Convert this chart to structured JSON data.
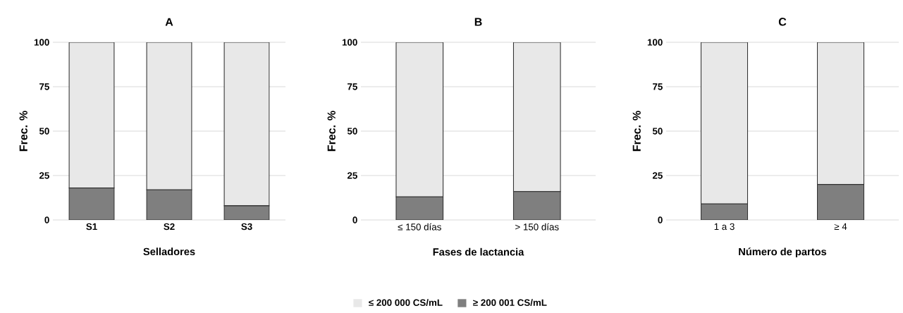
{
  "chart_data": [
    {
      "type": "bar",
      "title": "A",
      "xlabel": "Selladores",
      "ylabel": "Frec. %",
      "stacked": true,
      "grid": "y",
      "legend": "bottom",
      "categories": [
        "S1",
        "S2",
        "S3"
      ],
      "ylim": [
        0,
        100
      ],
      "yticks": [
        0,
        25,
        50,
        75,
        100
      ],
      "series": [
        {
          "name": "≥ 200 001 CS/mL",
          "color": "#7f7f7f",
          "values": [
            18,
            17,
            8
          ]
        },
        {
          "name": "≤ 200 000 CS/mL",
          "color": "#e8e8e8",
          "values": [
            82,
            83,
            92
          ]
        }
      ]
    },
    {
      "type": "bar",
      "title": "B",
      "xlabel": "Fases de lactancia",
      "ylabel": "Frec. %",
      "stacked": true,
      "grid": "y",
      "categories": [
        "≤ 150 días",
        "> 150 días"
      ],
      "ylim": [
        0,
        100
      ],
      "yticks": [
        0,
        25,
        50,
        75,
        100
      ],
      "series": [
        {
          "color": "#7f7f7f",
          "values": [
            13,
            16
          ]
        },
        {
          "color": "#e8e8e8",
          "values": [
            87,
            84
          ]
        }
      ]
    },
    {
      "type": "bar",
      "title": "C",
      "xlabel": "Número de partos",
      "ylabel": "Frec. %",
      "stacked": true,
      "grid": "y",
      "categories": [
        "1 a 3",
        "≥ 4"
      ],
      "ylim": [
        0,
        100
      ],
      "yticks": [
        0,
        25,
        50,
        75,
        100
      ],
      "series": [
        {
          "color": "#7f7f7f",
          "values": [
            9,
            20
          ]
        },
        {
          "color": "#e8e8e8",
          "values": [
            91,
            80
          ]
        }
      ]
    }
  ]
}
